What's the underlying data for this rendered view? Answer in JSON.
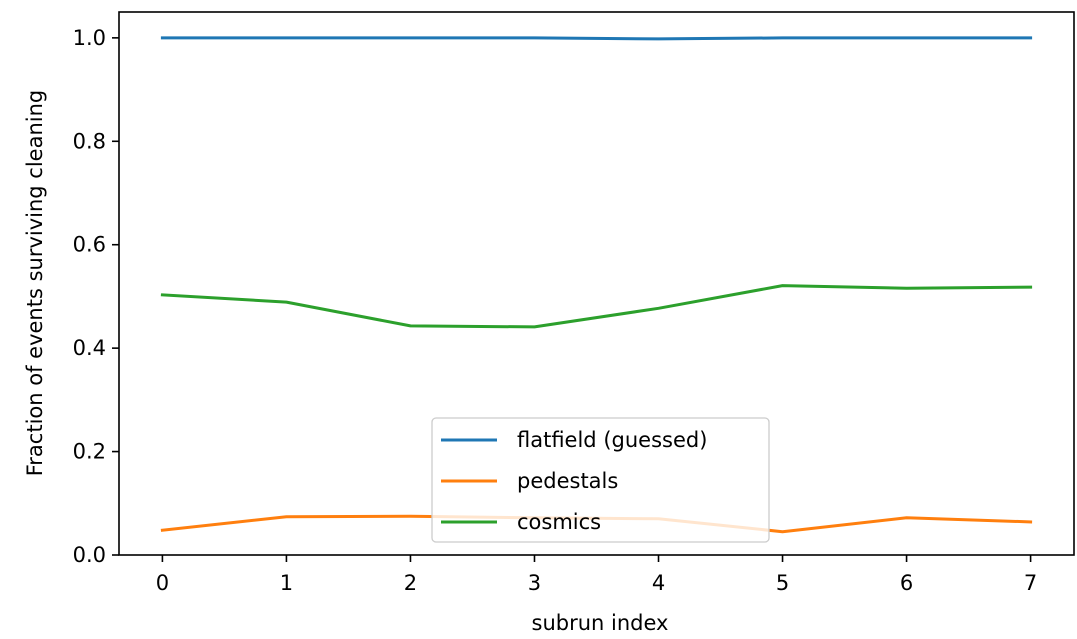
{
  "chart_data": {
    "type": "line",
    "title": "",
    "xlabel": "subrun index",
    "ylabel": "Fraction of events surviving cleaning",
    "x": [
      0,
      1,
      2,
      3,
      4,
      5,
      6,
      7
    ],
    "xlim": [
      -0.35,
      7.35
    ],
    "ylim": [
      0.0,
      1.05
    ],
    "xticks": [
      "0",
      "1",
      "2",
      "3",
      "4",
      "5",
      "6",
      "7"
    ],
    "yticks": [
      "0.0",
      "0.2",
      "0.4",
      "0.6",
      "0.8",
      "1.0"
    ],
    "grid": false,
    "legend_position": "lower center",
    "series": [
      {
        "name": "flatfield (guessed)",
        "color": "#1f77b4",
        "values": [
          1.0,
          1.0,
          1.0,
          1.0,
          0.998,
          1.0,
          1.0,
          1.0
        ]
      },
      {
        "name": "pedestals",
        "color": "#ff7f0e",
        "values": [
          0.048,
          0.074,
          0.075,
          0.072,
          0.07,
          0.045,
          0.072,
          0.064
        ]
      },
      {
        "name": "cosmics",
        "color": "#2ca02c",
        "values": [
          0.503,
          0.489,
          0.443,
          0.441,
          0.477,
          0.521,
          0.516,
          0.518
        ]
      }
    ]
  }
}
